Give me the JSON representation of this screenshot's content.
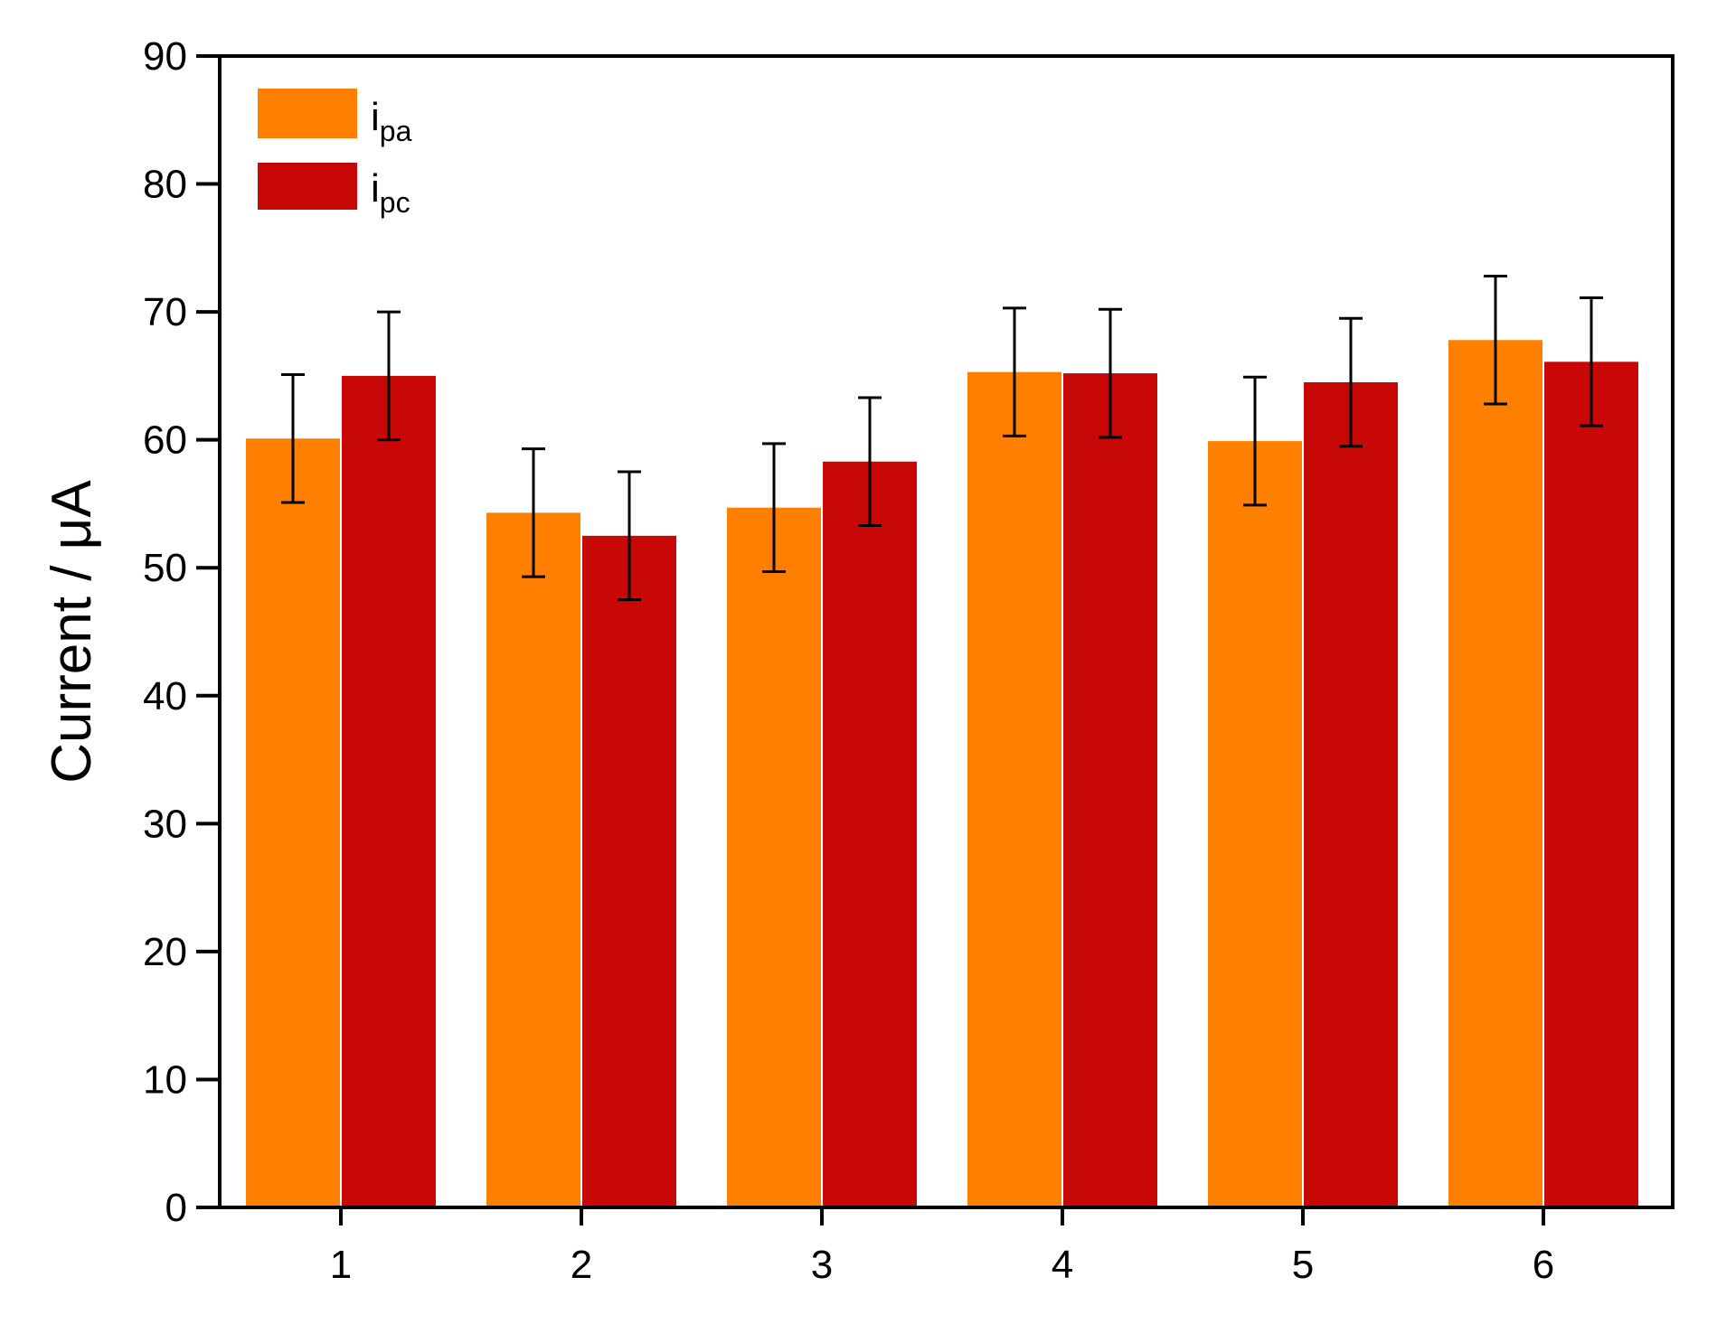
{
  "colors": {
    "ipa": "#FF8000",
    "ipc": "#C80707",
    "axis": "#000000",
    "error_bar": "#000000"
  },
  "chart_data": {
    "type": "bar",
    "categories": [
      "1",
      "2",
      "3",
      "4",
      "5",
      "6"
    ],
    "series": [
      {
        "name": "ipa",
        "label_main": "i",
        "label_sub": "pa",
        "values": [
          60.1,
          54.3,
          54.7,
          65.3,
          59.9,
          67.8
        ],
        "errors": [
          5.0,
          5.0,
          5.0,
          5.0,
          5.0,
          5.0
        ]
      },
      {
        "name": "ipc",
        "label_main": "i",
        "label_sub": "pc",
        "values": [
          65.0,
          52.5,
          58.3,
          65.2,
          64.5,
          66.1
        ],
        "errors": [
          5.0,
          5.0,
          5.0,
          5.0,
          5.0,
          5.0
        ]
      }
    ],
    "xlabel": "",
    "ylabel": "Current / μA",
    "ylim": [
      0,
      90
    ],
    "yticks": [
      0,
      10,
      20,
      30,
      40,
      50,
      60,
      70,
      80,
      90
    ],
    "grid": false,
    "legend": "top-left",
    "error_bars": true
  }
}
